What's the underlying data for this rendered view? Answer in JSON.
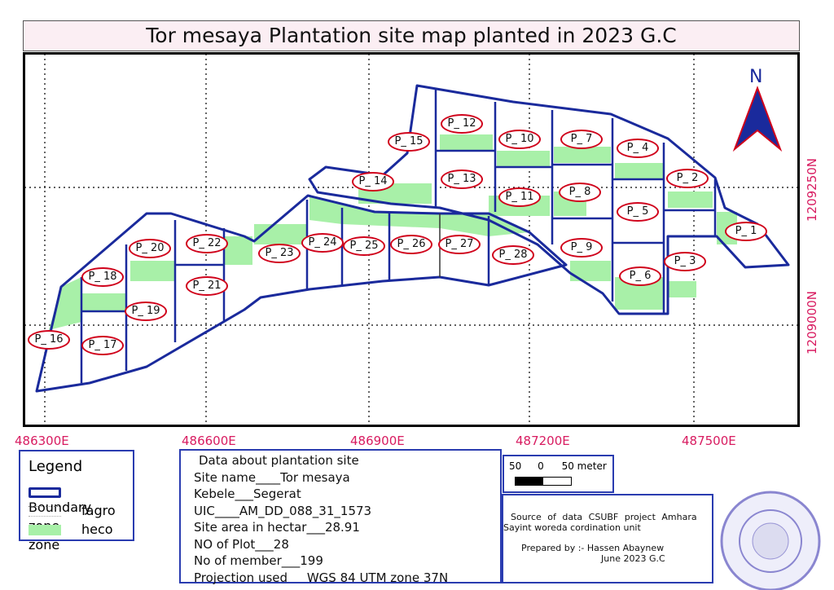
{
  "title": "Tor mesaya Plantation site map planted in 2023 G.C",
  "north": "N",
  "easting_labels": [
    "486300E",
    "486600E",
    "486900E",
    "487200E",
    "487500E"
  ],
  "northing_labels": [
    "1209250N",
    "1209000N"
  ],
  "plots": [
    "P_ 1",
    "P_ 2",
    "P_ 3",
    "P_ 4",
    "P_ 5",
    "P_ 6",
    "P_ 7",
    "P_ 8",
    "P_ 9",
    "P_ 10",
    "P_ 11",
    "P_ 12",
    "P_ 13",
    "P_ 14",
    "P_ 15",
    "P_ 16",
    "P_ 17",
    "P_ 18",
    "P_ 19",
    "P_ 20",
    "P_ 21",
    "P_ 22",
    "P_ 23",
    "P_ 24",
    "P_ 25",
    "P_ 26",
    "P_ 27",
    "P_ 28"
  ],
  "legend": {
    "title": "Legend",
    "items": [
      "Boundary",
      "fagro zone",
      "heco zone"
    ]
  },
  "info": {
    "heading": "Data about plantation site",
    "lines": [
      "Site name____Tor mesaya",
      "Kebele___Segerat",
      "UIC____AM_DD_088_31_1573",
      "Site area in hectar___28.91",
      "NO of Plot___28",
      "No of member___199",
      "Projection used     WGS 84 UTM zone 37N"
    ]
  },
  "scale": {
    "left": "50",
    "zero": "0",
    "right": "50 meter"
  },
  "source": {
    "line1": "Source of data CSUBF project Amhara",
    "line2": "Sayint woreda cordination unit",
    "prepared": "Prepared by :- Hassen Abaynew",
    "date": "June 2023 G.C"
  },
  "colors": {
    "boundary": "#1a2a9c",
    "heco": "#a8f0a8",
    "label": "#d81b60",
    "arrow": "#d0021b"
  }
}
